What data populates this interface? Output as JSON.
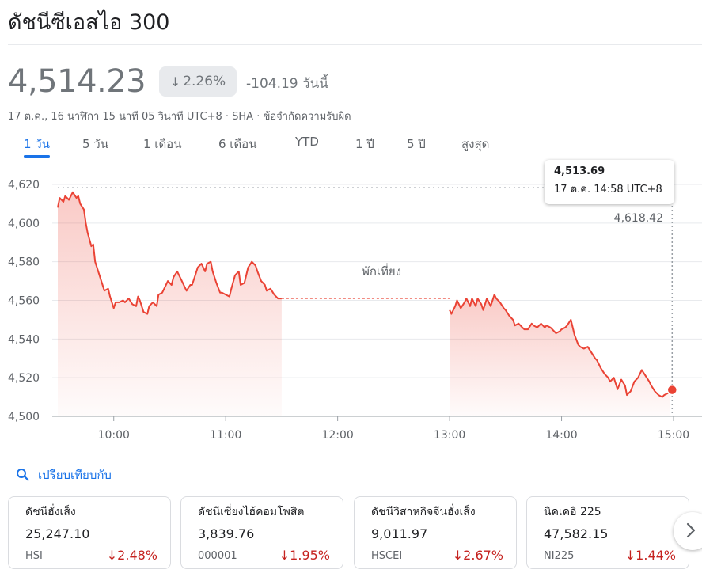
{
  "header": {
    "title": "ดัชนีซีเอสไอ 300",
    "price": "4,514.23",
    "change_percent": "2.26%",
    "change_abs": "-104.19 วันนี้",
    "meta": "17 ต.ค., 16 นาฬิกา 15 นาที 05 วินาที UTC+8 · SHA · ข้อจำกัดความรับผิด"
  },
  "tabs": [
    {
      "label": "1 วัน",
      "active": true
    },
    {
      "label": "5 วัน"
    },
    {
      "label": "1 เดือน"
    },
    {
      "label": "6 เดือน"
    },
    {
      "label": "YTD"
    },
    {
      "label": "1 ปี"
    },
    {
      "label": "5 ปี"
    },
    {
      "label": "สูงสุด"
    }
  ],
  "tooltip": {
    "value": "4,513.69",
    "time": "17 ต.ค. 14:58 UTC+8"
  },
  "colors": {
    "down": "#ea4335",
    "down_text": "#c5221f",
    "accent": "#1a73e8",
    "muted": "#70757a"
  },
  "chart_data": {
    "type": "line",
    "previous_close": 4618.42,
    "previous_close_label": "4,618.42",
    "lunch_label": "พักเที่ยง",
    "ylim": [
      4500,
      4620
    ],
    "yticks": [
      4500,
      4520,
      4540,
      4560,
      4580,
      4600,
      4620
    ],
    "ytick_labels": [
      "4,500",
      "4,520",
      "4,540",
      "4,560",
      "4,580",
      "4,600",
      "4,620"
    ],
    "xlim": [
      "09:30",
      "15:00"
    ],
    "xticks": [
      "10:00",
      "11:00",
      "12:00",
      "13:00",
      "14:00",
      "15:00"
    ],
    "lunch_break": [
      "11:30",
      "13:00"
    ],
    "lunch_level": 4561,
    "morning": {
      "x": [
        "09:30",
        "09:31",
        "09:33",
        "09:34",
        "09:36",
        "09:37",
        "09:38",
        "09:40",
        "09:41",
        "09:42",
        "09:44",
        "09:45",
        "09:46",
        "09:48",
        "09:49",
        "09:50",
        "09:52",
        "09:53",
        "09:55",
        "09:57",
        "09:58",
        "10:00",
        "10:01",
        "10:03",
        "10:05",
        "10:06",
        "10:08",
        "10:10",
        "10:12",
        "10:13",
        "10:14",
        "10:16",
        "10:18",
        "10:19",
        "10:21",
        "10:23",
        "10:24",
        "10:26",
        "10:27",
        "10:29",
        "10:31",
        "10:32",
        "10:34",
        "10:36",
        "10:38",
        "10:39",
        "10:41",
        "10:42",
        "10:44",
        "10:45",
        "10:47",
        "10:49",
        "10:50",
        "10:52",
        "10:53",
        "10:55",
        "10:57",
        "10:58",
        "11:00",
        "11:02",
        "11:03",
        "11:05",
        "11:07",
        "11:08",
        "11:10",
        "11:12",
        "11:14",
        "11:16",
        "11:17",
        "11:19",
        "11:21",
        "11:22",
        "11:24",
        "11:26",
        "11:28",
        "11:30"
      ],
      "y": [
        4608,
        4613,
        4611,
        4614,
        4612,
        4614,
        4616,
        4613,
        4614,
        4610,
        4607,
        4600,
        4595,
        4588,
        4589,
        4580,
        4574,
        4571,
        4565,
        4566,
        4562,
        4556,
        4559,
        4559,
        4560,
        4559,
        4561,
        4558,
        4557,
        4562,
        4560,
        4554,
        4553,
        4557,
        4559,
        4557,
        4563,
        4564,
        4566,
        4570,
        4568,
        4572,
        4575,
        4571,
        4567,
        4565,
        4568,
        4568,
        4574,
        4577,
        4579,
        4575,
        4579,
        4580,
        4575,
        4569,
        4564,
        4564,
        4563,
        4562,
        4566,
        4573,
        4575,
        4568,
        4569,
        4577,
        4580,
        4578,
        4575,
        4570,
        4568,
        4565,
        4566,
        4563,
        4561,
        4561
      ]
    },
    "afternoon": {
      "x": [
        "13:00",
        "13:01",
        "13:03",
        "13:04",
        "13:06",
        "13:08",
        "13:09",
        "13:11",
        "13:12",
        "13:14",
        "13:15",
        "13:17",
        "13:18",
        "13:20",
        "13:22",
        "13:24",
        "13:25",
        "13:27",
        "13:29",
        "13:30",
        "13:32",
        "13:34",
        "13:35",
        "13:37",
        "13:39",
        "13:40",
        "13:42",
        "13:44",
        "13:45",
        "13:47",
        "13:49",
        "13:51",
        "13:52",
        "13:54",
        "13:55",
        "13:57",
        "13:59",
        "14:00",
        "14:02",
        "14:03",
        "14:05",
        "14:07",
        "14:09",
        "14:10",
        "14:12",
        "14:14",
        "14:16",
        "14:18",
        "14:19",
        "14:21",
        "14:23",
        "14:25",
        "14:26",
        "14:28",
        "14:30",
        "14:32",
        "14:34",
        "14:35",
        "14:37",
        "14:39",
        "14:41",
        "14:43",
        "14:45",
        "14:47",
        "14:48",
        "14:50",
        "14:52",
        "14:54",
        "14:55",
        "14:57",
        "14:58"
      ],
      "y": [
        4555,
        4553,
        4557,
        4560,
        4556,
        4559,
        4561,
        4557,
        4561,
        4557,
        4561,
        4558,
        4555,
        4561,
        4557,
        4563,
        4561,
        4559,
        4556,
        4555,
        4552,
        4550,
        4547,
        4548,
        4546,
        4545,
        4545,
        4548,
        4547,
        4546,
        4548,
        4546,
        4547,
        4546,
        4545,
        4543,
        4544,
        4545,
        4546,
        4547,
        4550,
        4542,
        4537,
        4536,
        4535,
        4536,
        4533,
        4530,
        4529,
        4525,
        4522,
        4520,
        4518,
        4520,
        4514,
        4519,
        4516,
        4511,
        4513,
        4518,
        4520,
        4524,
        4521,
        4518,
        4516,
        4513,
        4511,
        4510,
        4511,
        4512,
        4514
      ]
    },
    "last_point": {
      "x": "14:58",
      "y": 4513.69
    }
  },
  "compare": {
    "label": "เปรียบเทียบกับ"
  },
  "cards": [
    {
      "name": "ดัชนีฮั่งเส็ง",
      "value": "25,247.10",
      "symbol": "HSI",
      "change": "2.48%"
    },
    {
      "name": "ดัชนีเซี่ยงไฮ้คอมโพสิต",
      "value": "3,839.76",
      "symbol": "000001",
      "change": "1.95%"
    },
    {
      "name": "ดัชนีวิสาหกิจจีนฮั่งเส็ง",
      "value": "9,011.97",
      "symbol": "HSCEI",
      "change": "2.67%"
    },
    {
      "name": "นิคเคอิ 225",
      "value": "47,582.15",
      "symbol": "NI225",
      "change": "1.44%"
    }
  ]
}
